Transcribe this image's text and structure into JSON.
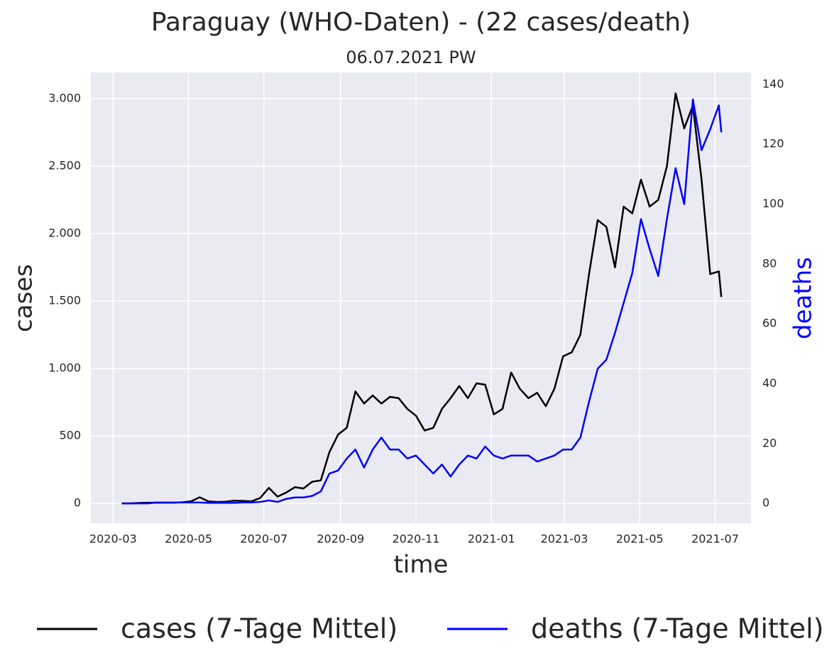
{
  "chart_data": {
    "type": "line",
    "title": "Paraguay (WHO-Daten) - (22 cases/death)",
    "subtitle": "06.07.2021 PW",
    "x_label": "time",
    "y_label": "cases",
    "y2_label": "deaths",
    "grid": true,
    "legend": "below",
    "xlim": [
      "2020-02-12",
      "2021-07-30"
    ],
    "xticks": [
      {
        "value": "2020-03-01",
        "label": "2020-03"
      },
      {
        "value": "2020-05-01",
        "label": "2020-05"
      },
      {
        "value": "2020-07-01",
        "label": "2020-07"
      },
      {
        "value": "2020-09-01",
        "label": "2020-09"
      },
      {
        "value": "2020-11-01",
        "label": "2020-11"
      },
      {
        "value": "2021-01-01",
        "label": "2021-01"
      },
      {
        "value": "2021-03-01",
        "label": "2021-03"
      },
      {
        "value": "2021-05-01",
        "label": "2021-05"
      },
      {
        "value": "2021-07-01",
        "label": "2021-07"
      }
    ],
    "ylim": [
      -147,
      3195
    ],
    "yticks": [
      0,
      500,
      {
        "value": 1000,
        "label": "1.000"
      },
      {
        "value": 1500,
        "label": "1.500"
      },
      {
        "value": 2000,
        "label": "2.000"
      },
      {
        "value": 2500,
        "label": "2.500"
      },
      {
        "value": 3000,
        "label": "3.000"
      }
    ],
    "y2lim": [
      -6.6,
      144
    ],
    "y2ticks": [
      0,
      20,
      40,
      60,
      80,
      100,
      120,
      140
    ],
    "x": [
      "2020-03-08",
      "2020-03-15",
      "2020-03-22",
      "2020-03-29",
      "2020-04-05",
      "2020-04-12",
      "2020-04-19",
      "2020-04-26",
      "2020-05-03",
      "2020-05-10",
      "2020-05-17",
      "2020-05-24",
      "2020-05-31",
      "2020-06-07",
      "2020-06-14",
      "2020-06-21",
      "2020-06-28",
      "2020-07-05",
      "2020-07-12",
      "2020-07-19",
      "2020-07-26",
      "2020-08-02",
      "2020-08-09",
      "2020-08-16",
      "2020-08-23",
      "2020-08-30",
      "2020-09-06",
      "2020-09-13",
      "2020-09-20",
      "2020-09-27",
      "2020-10-04",
      "2020-10-11",
      "2020-10-18",
      "2020-10-25",
      "2020-11-01",
      "2020-11-08",
      "2020-11-15",
      "2020-11-22",
      "2020-11-29",
      "2020-12-06",
      "2020-12-13",
      "2020-12-20",
      "2020-12-27",
      "2021-01-03",
      "2021-01-10",
      "2021-01-17",
      "2021-01-24",
      "2021-01-31",
      "2021-02-07",
      "2021-02-14",
      "2021-02-21",
      "2021-02-28",
      "2021-03-07",
      "2021-03-14",
      "2021-03-21",
      "2021-03-28",
      "2021-04-04",
      "2021-04-11",
      "2021-04-18",
      "2021-04-25",
      "2021-05-02",
      "2021-05-09",
      "2021-05-16",
      "2021-05-23",
      "2021-05-30",
      "2021-06-06",
      "2021-06-13",
      "2021-06-20",
      "2021-06-27",
      "2021-07-04",
      "2021-07-06"
    ],
    "series": [
      {
        "name": "cases (7-Tage Mittel)",
        "color": "#000000",
        "values": [
          0,
          0,
          3,
          5,
          5,
          5,
          5,
          8,
          15,
          45,
          15,
          10,
          12,
          20,
          18,
          15,
          40,
          115,
          50,
          80,
          120,
          110,
          160,
          170,
          380,
          510,
          560,
          830,
          740,
          800,
          740,
          790,
          780,
          700,
          650,
          540,
          560,
          700,
          780,
          870,
          780,
          890,
          880,
          660,
          700,
          970,
          850,
          780,
          820,
          720,
          850,
          1090,
          1120,
          1250,
          1700,
          2100,
          2050,
          1750,
          2200,
          2150,
          2400,
          2200,
          2250,
          2500,
          3040,
          2780,
          2950,
          2400,
          1700,
          1720,
          1530
        ]
      },
      {
        "name": "deaths (7-Tage Mittel)",
        "color": "#0000ff",
        "axis": "y2",
        "values": [
          0,
          0,
          0,
          0,
          0.3,
          0.3,
          0.3,
          0.3,
          0.3,
          0.3,
          0.2,
          0.2,
          0.2,
          0.2,
          0.3,
          0.3,
          0.5,
          1,
          0.5,
          1.5,
          2,
          2,
          2.5,
          4,
          10,
          11,
          15,
          18,
          12,
          18,
          22,
          18,
          18,
          15,
          16,
          13,
          10,
          13,
          9,
          13,
          16,
          15,
          19,
          16,
          15,
          16,
          16,
          16,
          14,
          15,
          16,
          18,
          18,
          22,
          34,
          45,
          48,
          57,
          67,
          77,
          95,
          85,
          76,
          95,
          112,
          100,
          135,
          118,
          125,
          133,
          124
        ]
      }
    ]
  }
}
